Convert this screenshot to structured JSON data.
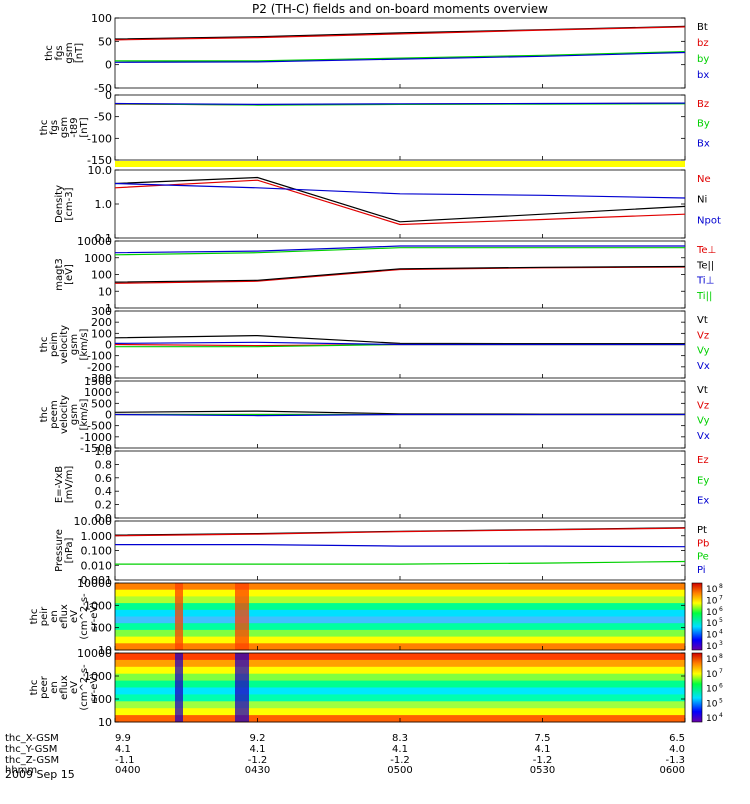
{
  "title": "P2 (TH-C) fields and on-board moments overview",
  "date_label": "2009 Sep 15",
  "colors": {
    "black": "#000000",
    "red": "#e00000",
    "green": "#00d000",
    "blue": "#0000d0",
    "yellow": "#ffff00"
  },
  "footer": {
    "row_labels": [
      "thc_X-GSM",
      "thc_Y-GSM",
      "thc_Z-GSM",
      "hhmm"
    ],
    "columns": [
      {
        "t": "0400",
        "x": "9.9",
        "y": "4.1",
        "z": "-1.1"
      },
      {
        "t": "0430",
        "x": "9.2",
        "y": "4.1",
        "z": "-1.2"
      },
      {
        "t": "0500",
        "x": "8.3",
        "y": "4.1",
        "z": "-1.2"
      },
      {
        "t": "0530",
        "x": "7.5",
        "y": "4.1",
        "z": "-1.2"
      },
      {
        "t": "0600",
        "x": "6.5",
        "y": "4.0",
        "z": "-1.3"
      }
    ]
  },
  "chart_data": [
    {
      "id": "p1",
      "type": "line",
      "ylabel": "thc\nfgs\ngsm\n[nT]",
      "ylim": [
        -50,
        100
      ],
      "scale": "linear",
      "ticks": [
        "100",
        "50",
        "0",
        "-50"
      ],
      "legend": [
        {
          "text": "Bt",
          "color": "black"
        },
        {
          "text": "bz",
          "color": "red"
        },
        {
          "text": "by",
          "color": "green"
        },
        {
          "text": "bx",
          "color": "blue"
        }
      ],
      "x": [
        "0400",
        "0430",
        "0500",
        "0530",
        "0600"
      ],
      "series": [
        {
          "name": "Bt",
          "color": "black",
          "values": [
            55,
            60,
            68,
            75,
            82
          ]
        },
        {
          "name": "bz",
          "color": "red",
          "values": [
            53,
            58,
            66,
            74,
            81
          ]
        },
        {
          "name": "by",
          "color": "green",
          "values": [
            8,
            8,
            14,
            20,
            28
          ]
        },
        {
          "name": "bx",
          "color": "blue",
          "values": [
            5,
            6,
            12,
            18,
            26
          ]
        }
      ]
    },
    {
      "id": "p2",
      "type": "line",
      "ylabel": "thc\nfgs\ngsm\n-t89\n[nT]",
      "ylim": [
        -175,
        25
      ],
      "scale": "linear",
      "ticks": [
        "0",
        "-50",
        "-100",
        "-150"
      ],
      "legend": [
        {
          "text": "Bz",
          "color": "red"
        },
        {
          "text": "By",
          "color": "green"
        },
        {
          "text": "Bx",
          "color": "blue"
        }
      ],
      "x": [
        "0400",
        "0430",
        "0500",
        "0530",
        "0600"
      ],
      "series": [
        {
          "name": "Bz",
          "color": "red",
          "values": [
            -3,
            -5,
            -3,
            -2,
            0
          ]
        },
        {
          "name": "By",
          "color": "green",
          "values": [
            -2,
            -6,
            -4,
            -3,
            -2
          ]
        },
        {
          "name": "Bx",
          "color": "blue",
          "values": [
            -1,
            -4,
            -2,
            -1,
            0
          ]
        }
      ]
    },
    {
      "id": "p3",
      "type": "line",
      "ylabel": "Density\n[cm-3]",
      "ylim": [
        0.1,
        10
      ],
      "scale": "log",
      "ticks": [
        "10.0",
        "1.0",
        "0.1"
      ],
      "legend": [
        {
          "text": "Ne",
          "color": "red"
        },
        {
          "text": "Ni",
          "color": "black"
        },
        {
          "text": "Npot",
          "color": "blue"
        }
      ],
      "x": [
        "0400",
        "0430",
        "0500",
        "0530",
        "0600"
      ],
      "series": [
        {
          "name": "Ne",
          "color": "red",
          "values": [
            3,
            5,
            0.25,
            0.35,
            0.5
          ]
        },
        {
          "name": "Ni",
          "color": "black",
          "values": [
            4,
            6,
            0.3,
            0.5,
            0.85
          ]
        },
        {
          "name": "Npot",
          "color": "blue",
          "values": [
            4,
            3,
            2,
            1.8,
            1.5
          ]
        }
      ]
    },
    {
      "id": "p4",
      "type": "line",
      "ylabel": "magt3\n[eV]",
      "ylim": [
        1,
        10000
      ],
      "scale": "log",
      "ticks": [
        "10000",
        "1000",
        "100",
        "10",
        "1"
      ],
      "legend": [
        {
          "text": "Te⊥",
          "color": "red"
        },
        {
          "text": "Te||",
          "color": "black"
        },
        {
          "text": "Ti⊥",
          "color": "blue"
        },
        {
          "text": "Ti||",
          "color": "green"
        }
      ],
      "x": [
        "0400",
        "0430",
        "0500",
        "0530",
        "0600"
      ],
      "series": [
        {
          "name": "Te⊥",
          "color": "red",
          "values": [
            30,
            40,
            200,
            250,
            280
          ]
        },
        {
          "name": "Te||",
          "color": "black",
          "values": [
            35,
            45,
            220,
            270,
            300
          ]
        },
        {
          "name": "Ti⊥",
          "color": "blue",
          "values": [
            2000,
            2500,
            5000,
            5000,
            5000
          ]
        },
        {
          "name": "Ti||",
          "color": "green",
          "values": [
            1500,
            2000,
            4000,
            4000,
            4000
          ]
        }
      ]
    },
    {
      "id": "p5",
      "type": "line",
      "ylabel": "thc\npeim\nvelocity\ngsm\n[km/s]",
      "ylim": [
        -300,
        300
      ],
      "scale": "linear",
      "ticks": [
        "300",
        "200",
        "100",
        "0",
        "-100",
        "-200",
        "-300"
      ],
      "legend": [
        {
          "text": "Vt",
          "color": "black"
        },
        {
          "text": "Vz",
          "color": "red"
        },
        {
          "text": "Vy",
          "color": "green"
        },
        {
          "text": "Vx",
          "color": "blue"
        }
      ],
      "x": [
        "0400",
        "0430",
        "0500",
        "0530",
        "0600"
      ],
      "series": [
        {
          "name": "Vt",
          "color": "black",
          "values": [
            60,
            80,
            10,
            8,
            8
          ]
        },
        {
          "name": "Vz",
          "color": "red",
          "values": [
            0,
            -10,
            0,
            0,
            0
          ]
        },
        {
          "name": "Vy",
          "color": "green",
          "values": [
            -20,
            -20,
            0,
            0,
            0
          ]
        },
        {
          "name": "Vx",
          "color": "blue",
          "values": [
            10,
            20,
            0,
            0,
            0
          ]
        }
      ]
    },
    {
      "id": "p6",
      "type": "line",
      "ylabel": "thc\npeem\nvelocity\ngsm\n[km/s]",
      "ylim": [
        -1500,
        1500
      ],
      "scale": "linear",
      "ticks": [
        "1500",
        "1000",
        "500",
        "0",
        "-500",
        "-1000",
        "-1500"
      ],
      "legend": [
        {
          "text": "Vt",
          "color": "black"
        },
        {
          "text": "Vz",
          "color": "red"
        },
        {
          "text": "Vy",
          "color": "green"
        },
        {
          "text": "Vx",
          "color": "blue"
        }
      ],
      "x": [
        "0400",
        "0430",
        "0500",
        "0530",
        "0600"
      ],
      "series": [
        {
          "name": "Vt",
          "color": "black",
          "values": [
            100,
            150,
            30,
            20,
            20
          ]
        },
        {
          "name": "Vz",
          "color": "red",
          "values": [
            0,
            0,
            0,
            0,
            0
          ]
        },
        {
          "name": "Vy",
          "color": "green",
          "values": [
            0,
            0,
            0,
            0,
            0
          ]
        },
        {
          "name": "Vx",
          "color": "blue",
          "values": [
            0,
            -50,
            0,
            0,
            0
          ]
        }
      ]
    },
    {
      "id": "p7",
      "type": "line",
      "ylabel": "E=-VxB\n[mV/m]",
      "ylim": [
        0,
        1
      ],
      "scale": "linear",
      "ticks": [
        "1.0",
        "0.8",
        "0.6",
        "0.4",
        "0.2",
        "0.0"
      ],
      "legend": [
        {
          "text": "Ez",
          "color": "red"
        },
        {
          "text": "Ey",
          "color": "green"
        },
        {
          "text": "Ex",
          "color": "blue"
        }
      ],
      "x": [],
      "series": []
    },
    {
      "id": "p8",
      "type": "line",
      "ylabel": "Pressure\n[nPa]",
      "ylim": [
        0.001,
        10
      ],
      "scale": "log",
      "ticks": [
        "10.000",
        "1.000",
        "0.100",
        "0.010",
        "0.001"
      ],
      "legend": [
        {
          "text": "Pt",
          "color": "black"
        },
        {
          "text": "Pb",
          "color": "red"
        },
        {
          "text": "Pe",
          "color": "green"
        },
        {
          "text": "Pi",
          "color": "blue"
        }
      ],
      "x": [
        "0400",
        "0430",
        "0500",
        "0530",
        "0600"
      ],
      "series": [
        {
          "name": "Pt",
          "color": "black",
          "values": [
            1.1,
            1.4,
            2,
            2.6,
            3.5
          ]
        },
        {
          "name": "Pb",
          "color": "red",
          "values": [
            1,
            1.3,
            1.9,
            2.5,
            3.3
          ]
        },
        {
          "name": "Pe",
          "color": "green",
          "values": [
            0.012,
            0.012,
            0.012,
            0.014,
            0.018
          ]
        },
        {
          "name": "Pi",
          "color": "blue",
          "values": [
            0.25,
            0.25,
            0.2,
            0.2,
            0.18
          ]
        }
      ]
    },
    {
      "id": "p9",
      "type": "heatmap",
      "ylabel": "thc\npeir\nen\neflux\neV\n(cm^2-s-\nsr-eV)",
      "ylim": [
        10,
        10000
      ],
      "scale": "log",
      "ticks": [
        "10000",
        "1000",
        "100",
        "10"
      ],
      "colorbar": {
        "labels": [
          "10",
          "10",
          "10",
          "10",
          "10",
          "10"
        ],
        "exps": [
          "8",
          "7",
          "6",
          "5",
          "4",
          "3"
        ]
      }
    },
    {
      "id": "p10",
      "type": "heatmap",
      "ylabel": "thc\npeer\nen\neflux\neV\n(cm^2-s-\nsr-eV)",
      "ylim": [
        10,
        10000
      ],
      "scale": "log",
      "ticks": [
        "10000",
        "1000",
        "100",
        "10"
      ],
      "colorbar": {
        "labels": [
          "10",
          "10",
          "10",
          "10",
          "10"
        ],
        "exps": [
          "8",
          "7",
          "6",
          "5",
          "4"
        ]
      }
    }
  ]
}
